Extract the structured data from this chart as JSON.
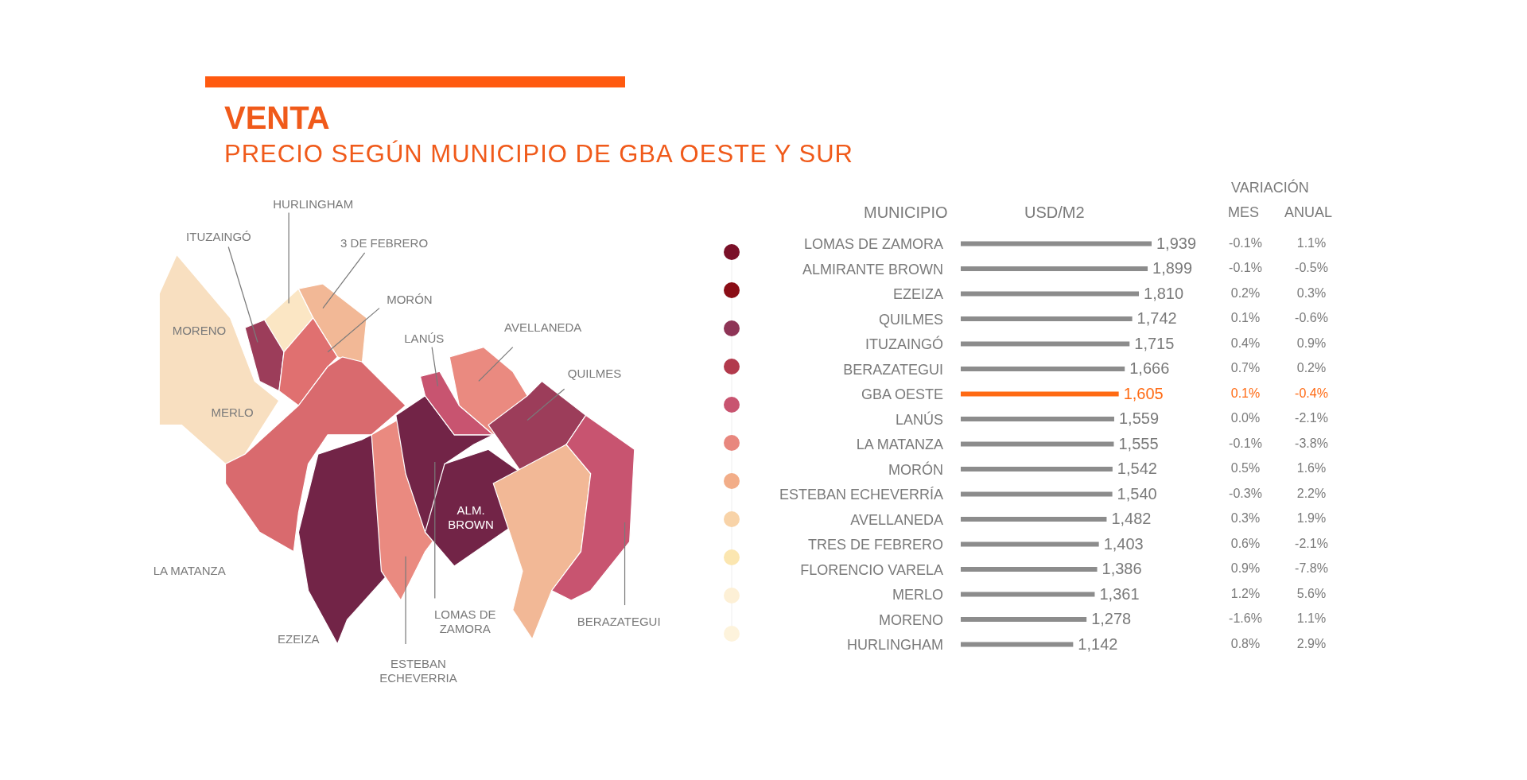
{
  "chart_data": {
    "type": "bar",
    "orientation": "horizontal",
    "title": "VENTA",
    "subtitle": "PRECIO SEGÚN MUNICIPIO DE GBA OESTE Y SUR",
    "ylabel": "MUNICIPIO",
    "xlabel": "USD/M2",
    "categories": [
      "LOMAS DE ZAMORA",
      "ALMIRANTE BROWN",
      "EZEIZA",
      "QUILMES",
      "ITUZAINGÓ",
      "BERAZATEGUI",
      "GBA OESTE",
      "LANÚS",
      "LA MATANZA",
      "MORÓN",
      "ESTEBAN ECHEVERRÍA",
      "AVELLANEDA",
      "TRES DE FEBRERO",
      "FLORENCIO VARELA",
      "MERLO",
      "MORENO",
      "HURLINGHAM"
    ],
    "values": [
      1939,
      1899,
      1810,
      1742,
      1715,
      1666,
      1605,
      1559,
      1555,
      1542,
      1540,
      1482,
      1403,
      1386,
      1361,
      1278,
      1142
    ],
    "value_labels": [
      "1,939",
      "1,899",
      "1,810",
      "1,742",
      "1,715",
      "1,666",
      "1,605",
      "1,559",
      "1,555",
      "1,542",
      "1,540",
      "1,482",
      "1,403",
      "1,386",
      "1,361",
      "1,278",
      "1,142"
    ],
    "colors": [
      "#8c8c8c",
      "#8c8c8c",
      "#8c8c8c",
      "#8c8c8c",
      "#8c8c8c",
      "#8c8c8c",
      "#ff6a13",
      "#8c8c8c",
      "#8c8c8c",
      "#8c8c8c",
      "#8c8c8c",
      "#8c8c8c",
      "#8c8c8c",
      "#8c8c8c",
      "#8c8c8c",
      "#8c8c8c",
      "#8c8c8c"
    ],
    "annotations": [
      "VARIACIÓN",
      "MES",
      "ANUAL",
      "HURLINGHAM",
      "ITUZAINGÓ",
      "3 DE FEBRERO",
      "MORÓN",
      "MORENO",
      "LANÚS",
      "AVELLANEDA",
      "QUILMES",
      "MERLO",
      "ALM. BROWN",
      "LA MATANZA",
      "EZEIZA",
      "LOMAS DE ZAMORA",
      "ESTEBAN ECHEVERRIA",
      "BERAZATEGUI",
      "-0.1%",
      "1.1%",
      "-0.1%",
      "-0.5%",
      "0.2%",
      "0.3%",
      "0.1%",
      "-0.6%",
      "0.4%",
      "0.9%",
      "0.7%",
      "0.2%",
      "0.1%",
      "-0.4%",
      "0.0%",
      "-2.1%",
      "-0.1%",
      "-3.8%",
      "0.5%",
      "1.6%",
      "-0.3%",
      "2.2%",
      "0.3%",
      "1.9%",
      "0.6%",
      "-2.1%",
      "0.9%",
      "-7.8%",
      "1.2%",
      "5.6%",
      "-1.6%",
      "1.1%",
      "0.8%",
      "2.9%"
    ]
  }
}
